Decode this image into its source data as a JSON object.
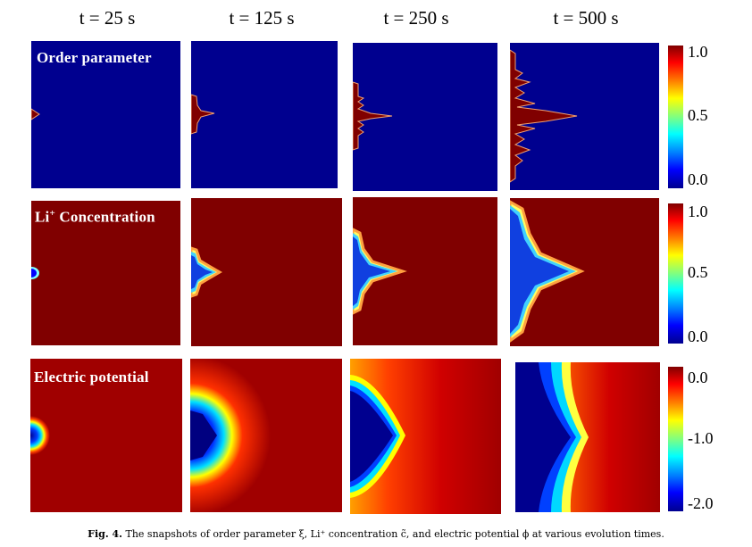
{
  "time_labels": [
    "t = 25 s",
    "t = 125 s",
    "t = 250 s",
    "t = 500 s"
  ],
  "rows": [
    {
      "label": "Order parameter",
      "colorbar_ticks": [
        "1.0",
        "0.5",
        "0.0"
      ]
    },
    {
      "label_prefix": "Li",
      "label_sup": "+",
      "label_suffix": " Concentration",
      "colorbar_ticks": [
        "1.0",
        "0.5",
        "0.0"
      ]
    },
    {
      "label": "Electric potential",
      "colorbar_ticks": [
        "0.0",
        "-1.0",
        "-2.0"
      ]
    }
  ],
  "colormap": "jet",
  "colors": {
    "low": "#00008f",
    "high": "#800000"
  },
  "caption": {
    "fig": "Fig. 4.",
    "text": "The snapshots of order parameter ξ, Li⁺ concentration c̃, and electric potential ϕ at various evolution times."
  }
}
